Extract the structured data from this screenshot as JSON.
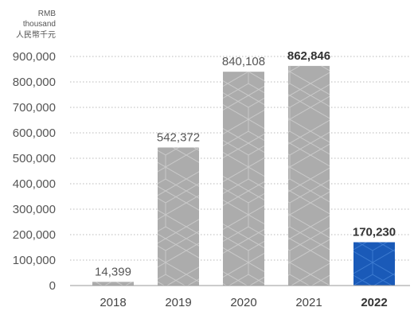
{
  "chart_data": {
    "type": "bar",
    "unit_label": [
      "RMB",
      "thousand",
      "人民幣千元"
    ],
    "categories": [
      "2018",
      "2019",
      "2020",
      "2021",
      "2022"
    ],
    "values": [
      14399,
      542372,
      840108,
      862846,
      170230
    ],
    "value_labels": [
      "14,399",
      "542,372",
      "840,108",
      "862,846",
      "170,230"
    ],
    "bold_value_labels": [
      false,
      false,
      false,
      true,
      true
    ],
    "highlight_index": 4,
    "yticks": [
      0,
      100000,
      200000,
      300000,
      400000,
      500000,
      600000,
      700000,
      800000,
      900000
    ],
    "ytick_labels": [
      "0",
      "100,000",
      "200,000",
      "300,000",
      "400,000",
      "500,000",
      "600,000",
      "700,000",
      "800,000",
      "900,000"
    ],
    "ylim": [
      0,
      900000
    ],
    "grid": true,
    "colors": {
      "bar": "#acacac",
      "highlight": "#1a5ab8",
      "pattern": "#c9c9c9",
      "highlight_pattern": "#3b7ad0"
    }
  }
}
